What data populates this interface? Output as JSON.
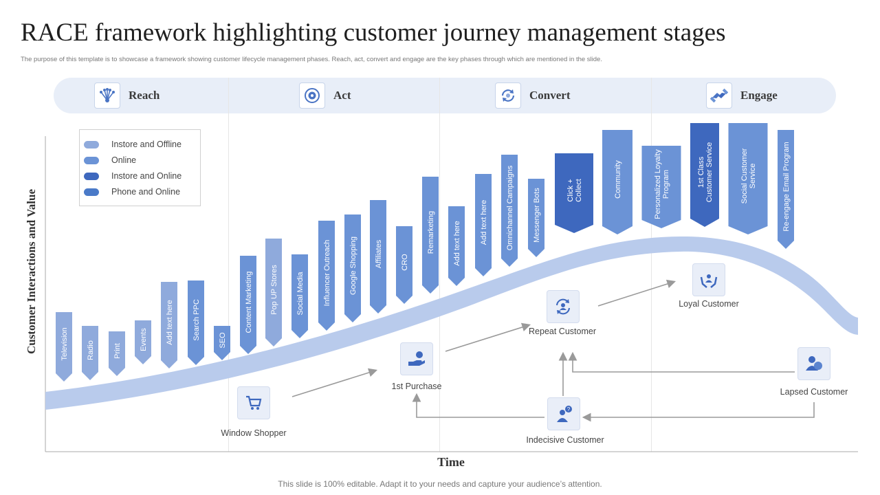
{
  "title": "RACE framework highlighting customer journey management stages",
  "subtitle": "The purpose of this template is to showcase a framework showing customer lifecycle management phases. Reach, act, convert and engage are the key phases through which are mentioned in the slide.",
  "footer": "This slide is 100% editable. Adapt it to your needs and capture your audience’s attention.",
  "phases": [
    {
      "label": "Reach",
      "icon": "network-icon"
    },
    {
      "label": "Act",
      "icon": "target-icon"
    },
    {
      "label": "Convert",
      "icon": "cycle-icon"
    },
    {
      "label": "Engage",
      "icon": "handshake-icon"
    }
  ],
  "legend": [
    {
      "label": "Instore and Offline",
      "color": "#8faadc"
    },
    {
      "label": "Online",
      "color": "#6b93d6"
    },
    {
      "label": "Instore and Online",
      "color": "#3e68be"
    },
    {
      "label": "Phone and Online",
      "color": "#4a7ac8"
    }
  ],
  "axes": {
    "y": "Customer Interactions and Value",
    "x": "Time"
  },
  "channels": [
    {
      "label": "Television",
      "kind": 1
    },
    {
      "label": "Radio",
      "kind": 1
    },
    {
      "label": "Print",
      "kind": 1
    },
    {
      "label": "Events",
      "kind": 1
    },
    {
      "label": "Add text here",
      "kind": 1
    },
    {
      "label": "Search PPC",
      "kind": 2
    },
    {
      "label": "SEO",
      "kind": 2
    },
    {
      "label": "Content Marketing",
      "kind": 2
    },
    {
      "label": "Pop UP Stores",
      "kind": 1
    },
    {
      "label": "Social Media",
      "kind": 2
    },
    {
      "label": "Influencer Outreach",
      "kind": 2
    },
    {
      "label": "Google Shopping",
      "kind": 2
    },
    {
      "label": "Affiliates",
      "kind": 2
    },
    {
      "label": "CRO",
      "kind": 2
    },
    {
      "label": "Remarketing",
      "kind": 2
    },
    {
      "label": "Add text here",
      "kind": 2
    },
    {
      "label": "Add text here",
      "kind": 2
    },
    {
      "label": "Omnichannel Campaigns",
      "kind": 2
    },
    {
      "label": "Messenger Bots",
      "kind": 2
    },
    {
      "label": "Click + Collect",
      "kind": 3
    },
    {
      "label": "Community",
      "kind": 2
    },
    {
      "label": "Personalized Loyalty Program",
      "kind": 2
    },
    {
      "label": "1st Class Customer Service",
      "kind": 3
    },
    {
      "label": "Social Customer Service",
      "kind": 2
    },
    {
      "label": "Re-engage Email Program",
      "kind": 2
    }
  ],
  "stages": [
    {
      "label": "Window Shopper",
      "icon": "shopping-cart-icon"
    },
    {
      "label": "1st Purchase",
      "icon": "hand-coin-icon"
    },
    {
      "label": "Repeat Customer",
      "icon": "repeat-customer-icon"
    },
    {
      "label": "Loyal Customer",
      "icon": "loyal-hands-icon"
    },
    {
      "label": "Lapsed Customer",
      "icon": "users-icon"
    },
    {
      "label": "Indecisive Customer",
      "icon": "question-person-icon"
    }
  ]
}
